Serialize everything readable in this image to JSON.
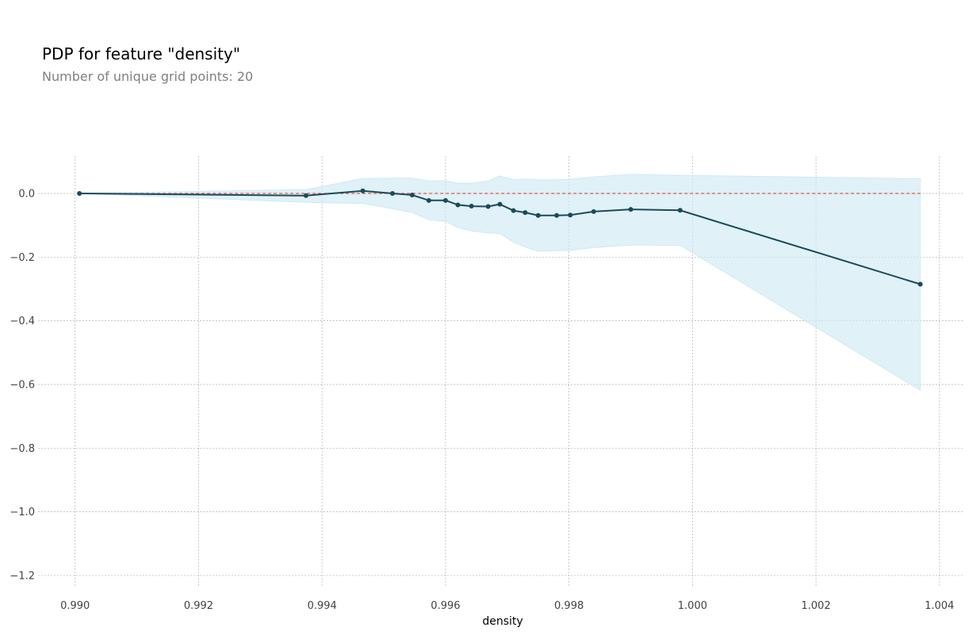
{
  "title": "PDP for feature \"density\"",
  "subtitle": "Number of unique grid points: 20",
  "chart_data": {
    "type": "line",
    "title": "PDP for feature \"density\"",
    "subtitle": "Number of unique grid points: 20",
    "xlabel": "density",
    "ylabel": "",
    "xlim": [
      0.9894,
      1.0044
    ],
    "ylim": [
      -1.235,
      0.117
    ],
    "xticks": [
      0.99,
      0.992,
      0.994,
      0.996,
      0.998,
      1.0,
      1.002,
      1.004
    ],
    "xtick_labels": [
      "0.990",
      "0.992",
      "0.994",
      "0.996",
      "0.998",
      "1.000",
      "1.002",
      "1.004"
    ],
    "yticks": [
      0.0,
      -0.2,
      -0.4,
      -0.6,
      -0.8,
      -1.0,
      -1.2
    ],
    "ytick_labels": [
      "0.0",
      "−0.2",
      "−0.4",
      "−0.6",
      "−0.8",
      "−1.0",
      "−1.2"
    ],
    "grid": true,
    "baseline": 0.0,
    "series": [
      {
        "x": [
          0.99007,
          0.99374,
          0.99466,
          0.99514,
          0.99546,
          0.99573,
          0.996,
          0.9962,
          0.99642,
          0.99669,
          0.99688,
          0.9971,
          0.99729,
          0.9975,
          0.9978,
          0.99802,
          0.9984,
          0.999,
          0.9998,
          1.00369
        ],
        "y": [
          0.0,
          -0.007,
          0.008,
          0.0,
          -0.005,
          -0.022,
          -0.022,
          -0.036,
          -0.04,
          -0.041,
          -0.034,
          -0.054,
          -0.06,
          -0.069,
          -0.069,
          -0.068,
          -0.057,
          -0.05,
          -0.053,
          -0.285
        ],
        "upper": [
          0.0,
          0.012,
          0.047,
          0.048,
          0.048,
          0.039,
          0.04,
          0.032,
          0.032,
          0.039,
          0.055,
          0.043,
          0.045,
          0.043,
          0.043,
          0.044,
          0.052,
          0.06,
          0.057,
          0.046
        ],
        "lower": [
          0.0,
          -0.028,
          -0.032,
          -0.048,
          -0.06,
          -0.083,
          -0.088,
          -0.107,
          -0.118,
          -0.124,
          -0.126,
          -0.153,
          -0.168,
          -0.181,
          -0.18,
          -0.179,
          -0.17,
          -0.162,
          -0.163,
          -0.618
        ]
      }
    ]
  },
  "colors": {
    "line": "#1a4a5c",
    "band": "#cfeaf4",
    "baseline": "#e0574a",
    "grid": "#b0b0b0",
    "tick_text": "#424242",
    "subtitle": "#808080"
  }
}
